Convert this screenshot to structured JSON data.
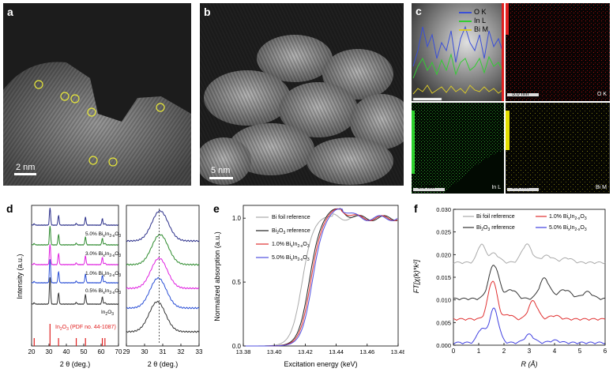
{
  "panels": {
    "a": {
      "label": "a",
      "scalebar": "2 nm"
    },
    "b": {
      "label": "b",
      "scalebar": "5 nm"
    },
    "c": {
      "label": "c",
      "legend": [
        {
          "name": "O K",
          "color": "#3a4fd8"
        },
        {
          "name": "In L",
          "color": "#33cc33"
        },
        {
          "name": "Bi M",
          "color": "#d8c82a"
        }
      ],
      "maps": [
        {
          "scalebar": "5.0 nm",
          "element": "O K",
          "color": "#d42020"
        },
        {
          "scalebar": "5.0 nm",
          "element": "In L",
          "color": "#2ccf2c"
        },
        {
          "scalebar": "5.0 nm",
          "element": "Bi M",
          "color": "#e3e000"
        }
      ]
    },
    "d": {
      "label": "d"
    },
    "e": {
      "label": "e"
    },
    "f": {
      "label": "f"
    }
  },
  "chart_data": [
    {
      "id": "d-left",
      "type": "line",
      "xlabel": "2 θ (deg.)",
      "ylabel": "Intensity (a.u.)",
      "xlim": [
        20,
        70
      ],
      "xticks": [
        20,
        30,
        40,
        50,
        60,
        70
      ],
      "series": [
        {
          "name": "5.0% BixIn2-xO3",
          "color": "#2b2f8a"
        },
        {
          "name": "3.0% BixIn2-xO3",
          "color": "#2e8b2e"
        },
        {
          "name": "1.0% BixIn2-xO3",
          "color": "#e020e0"
        },
        {
          "name": "0.5% BixIn2-xO3",
          "color": "#2a4fd6"
        },
        {
          "name": "In2O3",
          "color": "#333333"
        }
      ],
      "annotations": [
        "In2O3 (PDF no. 44-1087)"
      ],
      "reference_lines": [
        21.5,
        30.6,
        35.5,
        45.7,
        51.0,
        60.7,
        62.2
      ],
      "peaks": [
        30.6,
        35.5,
        51.0,
        60.7
      ]
    },
    {
      "id": "d-right",
      "type": "line",
      "xlabel": "2 θ (deg.)",
      "xlim": [
        29,
        33
      ],
      "xticks": [
        29,
        30,
        31,
        32,
        33
      ],
      "peak_center": 30.8,
      "series": [
        {
          "name": "5.0%",
          "color": "#2b2f8a"
        },
        {
          "name": "3.0%",
          "color": "#2e8b2e"
        },
        {
          "name": "1.0%",
          "color": "#e020e0"
        },
        {
          "name": "0.5%",
          "color": "#2a4fd6"
        },
        {
          "name": "In2O3",
          "color": "#333333"
        }
      ]
    },
    {
      "id": "e",
      "type": "line",
      "xlabel": "Excitation energy (keV)",
      "ylabel": "Normalized absorption (a.u.)",
      "xlim": [
        13.38,
        13.48
      ],
      "ylim": [
        0,
        1.1
      ],
      "xticks": [
        13.38,
        13.4,
        13.42,
        13.44,
        13.46,
        13.48
      ],
      "xtick_labels": [
        "13.38",
        "13.40",
        "13.42",
        "13.44",
        "13.46",
        "13.48"
      ],
      "yticks": [
        0,
        0.5,
        1.0
      ],
      "ytick_labels": [
        "0.0",
        "0.5",
        "1.0"
      ],
      "series": [
        {
          "name": "Bi foil reference",
          "color": "#aaaaaa",
          "edge": 13.418
        },
        {
          "name": "Bi2O3 reference",
          "color": "#222222",
          "edge": 13.4225
        },
        {
          "name": "1.0% BixIn2-xO3",
          "color": "#e03030",
          "edge": 13.4235
        },
        {
          "name": "5.0% BixIn2-xO3",
          "color": "#5050e0",
          "edge": 13.4245
        }
      ]
    },
    {
      "id": "f",
      "type": "line",
      "xlabel": "R (Å)",
      "ylabel": "FT[χ(k)*k²]",
      "xlim": [
        0,
        6
      ],
      "ylim": [
        0,
        0.03
      ],
      "xticks": [
        0,
        1,
        2,
        3,
        4,
        5,
        6
      ],
      "yticks": [
        0,
        0.005,
        0.01,
        0.015,
        0.02,
        0.025,
        0.03
      ],
      "ytick_labels": [
        "0.000",
        "0.005",
        "0.010",
        "0.015",
        "0.020",
        "0.025",
        "0.030"
      ],
      "series": [
        {
          "name": "Bi foil reference",
          "color": "#aaaaaa",
          "offset": 0.018
        },
        {
          "name": "Bi2O3 reference",
          "color": "#333333",
          "offset": 0.01
        },
        {
          "name": "1.0% BixIn2-xO3",
          "color": "#e03030",
          "offset": 0.0055
        },
        {
          "name": "5.0% BixIn2-xO3",
          "color": "#4040e0",
          "offset": 0.0003
        }
      ]
    }
  ]
}
